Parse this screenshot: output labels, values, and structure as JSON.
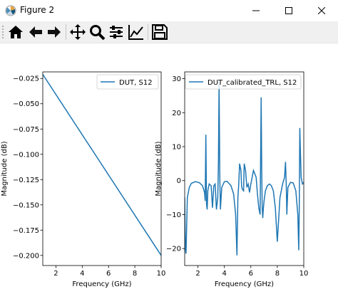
{
  "window": {
    "title": "Figure 2",
    "icon": "matplotlib-icon",
    "controls": [
      "minimize-icon",
      "maximize-icon",
      "close-icon"
    ]
  },
  "toolbar": {
    "buttons": [
      "home-icon",
      "back-arrow-icon",
      "forward-arrow-icon",
      "pan-icon",
      "zoom-icon",
      "configure-subplots-icon",
      "edit-axis-icon",
      "save-icon"
    ]
  },
  "colors": {
    "series": "#1f77b4",
    "axes": "#000000"
  },
  "chart_data": [
    {
      "type": "line",
      "title": "",
      "xlabel": "Frequency (GHz)",
      "ylabel": "Magnitude (dB)",
      "xlim": [
        1,
        10
      ],
      "ylim": [
        -0.21,
        -0.0185
      ],
      "xticks": [
        2,
        4,
        6,
        8,
        10
      ],
      "xtick_labels": [
        "2",
        "4",
        "6",
        "8",
        "10"
      ],
      "yticks": [
        -0.025,
        -0.05,
        -0.075,
        -0.1,
        -0.125,
        -0.15,
        -0.175,
        -0.2
      ],
      "ytick_labels": [
        "−0.025",
        "−0.050",
        "−0.075",
        "−0.100",
        "−0.125",
        "−0.150",
        "−0.175",
        "−0.200"
      ],
      "grid": false,
      "legend_position": "top-right",
      "series": [
        {
          "name": "DUT, S12",
          "x": [
            1,
            10
          ],
          "y": [
            -0.021,
            -0.2
          ]
        }
      ]
    },
    {
      "type": "line",
      "title": "",
      "xlabel": "Frequency (GHz)",
      "ylabel": "Magnitude (dB)",
      "xlim": [
        1,
        10
      ],
      "ylim": [
        -25,
        32
      ],
      "xticks": [
        2,
        4,
        6,
        8,
        10
      ],
      "xtick_labels": [
        "2",
        "4",
        "6",
        "8",
        "10"
      ],
      "yticks": [
        -20,
        -10,
        0,
        10,
        20,
        30
      ],
      "ytick_labels": [
        "−20",
        "−10",
        "0",
        "10",
        "20",
        "30"
      ],
      "grid": false,
      "legend_position": "top-right",
      "series": [
        {
          "name": "DUT_calibrated_TRL, S12",
          "x": [
            1.0,
            1.05,
            1.1,
            1.2,
            1.35,
            1.5,
            1.8,
            2.1,
            2.35,
            2.5,
            2.55,
            2.6,
            2.65,
            2.7,
            2.75,
            2.85,
            3.0,
            3.1,
            3.2,
            3.3,
            3.4,
            3.5,
            3.55,
            3.6,
            3.65,
            3.7,
            3.8,
            4.0,
            4.2,
            4.5,
            4.7,
            4.85,
            4.95,
            5.02,
            5.08,
            5.15,
            5.25,
            5.3,
            5.35,
            5.45,
            5.5,
            5.6,
            5.7,
            5.8,
            5.9,
            6.0,
            6.1,
            6.2,
            6.4,
            6.5,
            6.6,
            6.7,
            6.78,
            6.82,
            6.86,
            6.9,
            6.95,
            7.0,
            7.1,
            7.25,
            7.4,
            7.55,
            7.7,
            7.85,
            8.0,
            8.2,
            8.4,
            8.55,
            8.62,
            8.68,
            8.72,
            8.8,
            9.0,
            9.2,
            9.4,
            9.55,
            9.62,
            9.66,
            9.7,
            9.75,
            9.8,
            9.9,
            10.0
          ],
          "y": [
            -5,
            -20,
            -21.5,
            -5,
            -2,
            -0.8,
            -0.3,
            -0.6,
            -1.5,
            -3.5,
            -6,
            13.5,
            -7,
            -8.5,
            -3,
            -1,
            -1.5,
            -8,
            -1.5,
            -1,
            -8.5,
            -5,
            5,
            29,
            2,
            -8.5,
            -2,
            -0.3,
            -0.2,
            -1.5,
            -4,
            -10,
            -22,
            -5,
            -1.5,
            5,
            3,
            -1.5,
            -2.5,
            -3,
            5,
            3,
            -2,
            -1,
            -3.5,
            -1,
            1,
            3,
            1,
            -4,
            -8,
            -10,
            24.5,
            4,
            -8,
            -11,
            -8,
            -6,
            -3,
            -1.5,
            -1,
            -1.5,
            -3,
            -8,
            -18,
            -5,
            -1,
            1,
            5.5,
            -2,
            -10,
            -2,
            -0.5,
            -0.7,
            -3,
            -10,
            -20.5,
            -8,
            15.5,
            8,
            1,
            -1,
            -0.5
          ]
        }
      ]
    }
  ]
}
